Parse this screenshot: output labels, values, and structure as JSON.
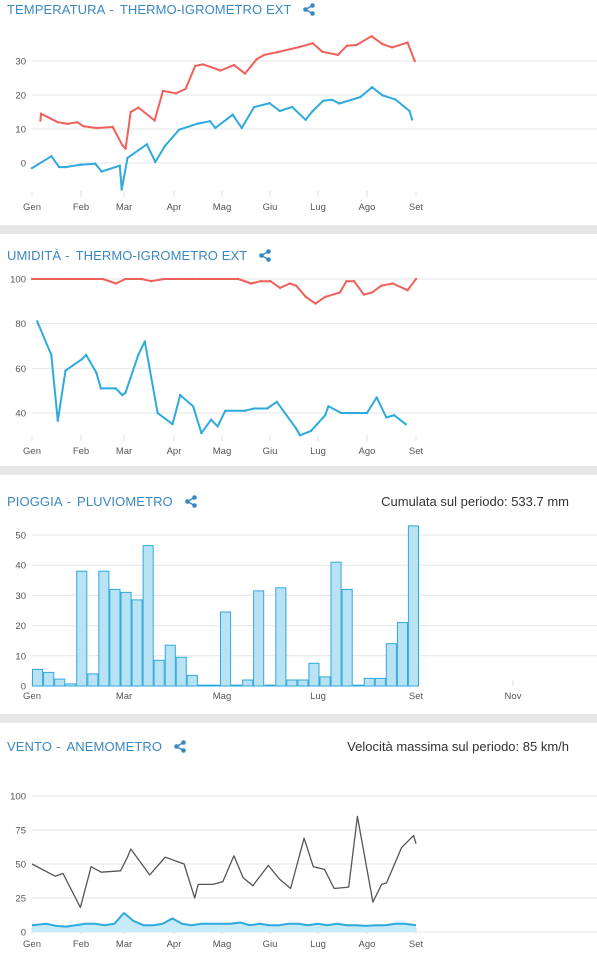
{
  "sections": [
    {
      "title_main": "TEMPERATURA",
      "title_sensor": "THERMO-IGROMETRO EXT"
    },
    {
      "title_main": "UMIDITÀ",
      "title_sensor": "THERMO-IGROMETRO EXT"
    },
    {
      "title_main": "PIOGGIA",
      "title_sensor": "PLUVIOMETRO",
      "stat": "Cumulata sul periodo: 533.7 mm"
    },
    {
      "title_main": "VENTO",
      "title_sensor": "ANEMOMETRO",
      "stat": "Velocità massima sul periodo: 85 km/h"
    }
  ],
  "colors": {
    "max": "#f0605a",
    "min": "#2eaadc",
    "rain_fill": "#b9e3f4",
    "rain_stroke": "#2eaadc",
    "wind_max": "#555555",
    "wind_avg": "#2eaadc",
    "wind_fill": "#c7ebf8",
    "grid": "#e6e6e6",
    "title": "#3a88c2"
  },
  "icons": {
    "share": "share-icon"
  },
  "chart_data": [
    {
      "type": "line",
      "xlabels": [
        "Gen",
        "Feb",
        "Mar",
        "Apr",
        "Mag",
        "Giu",
        "Lug",
        "Ago",
        "Set"
      ],
      "yticks": [
        0,
        10,
        20,
        30
      ],
      "ylim": [
        -9,
        40
      ],
      "series": [
        {
          "values": [
            [
              1.3,
              12.5
            ],
            [
              1.4,
              14.5
            ],
            [
              4,
              12
            ],
            [
              5.5,
              11.5
            ],
            [
              7,
              12
            ],
            [
              8,
              10.8
            ],
            [
              10,
              10.3
            ],
            [
              12.5,
              10.6
            ],
            [
              14,
              5.2
            ],
            [
              14.5,
              4.2
            ],
            [
              15.3,
              15
            ],
            [
              16.5,
              16.3
            ],
            [
              19,
              12.5
            ],
            [
              20.3,
              21.2
            ],
            [
              22.3,
              20.5
            ],
            [
              23.8,
              21.8
            ],
            [
              25.3,
              28.6
            ],
            [
              26.5,
              29
            ],
            [
              27.6,
              28.3
            ],
            [
              29.2,
              27.2
            ],
            [
              31.3,
              28.8
            ],
            [
              33,
              26.3
            ],
            [
              34.8,
              30.5
            ],
            [
              36,
              31.8
            ],
            [
              38,
              32.6
            ],
            [
              41.2,
              34
            ],
            [
              43.5,
              35.2
            ],
            [
              45,
              32.7
            ],
            [
              47.4,
              31.8
            ],
            [
              48.8,
              34.5
            ],
            [
              50.3,
              34.7
            ],
            [
              52.6,
              37.3
            ],
            [
              54.3,
              35
            ],
            [
              55.8,
              34
            ],
            [
              58.2,
              35.4
            ],
            [
              59.3,
              30
            ]
          ]
        },
        {
          "values": [
            [
              0,
              -1.5
            ],
            [
              3,
              2
            ],
            [
              4.2,
              -1.2
            ],
            [
              5.2,
              -1.2
            ],
            [
              7.5,
              -0.5
            ],
            [
              9.8,
              -0.2
            ],
            [
              10.8,
              -2.5
            ],
            [
              13.6,
              -0.8
            ],
            [
              13.9,
              -7.8
            ],
            [
              14.8,
              1.5
            ],
            [
              17.8,
              5.5
            ],
            [
              19.1,
              0.3
            ],
            [
              20.6,
              5
            ],
            [
              22.8,
              9.8
            ],
            [
              25.7,
              11.6
            ],
            [
              27.6,
              12.3
            ],
            [
              28.4,
              10.3
            ],
            [
              31.1,
              14.2
            ],
            [
              32.5,
              10.3
            ],
            [
              34.4,
              16.4
            ],
            [
              36.8,
              17.6
            ],
            [
              38.4,
              15.3
            ],
            [
              40.3,
              16.5
            ],
            [
              42.4,
              12.7
            ],
            [
              43.5,
              15.3
            ],
            [
              45.1,
              18.3
            ],
            [
              46.5,
              18.6
            ],
            [
              47.6,
              17.5
            ],
            [
              49.5,
              18.6
            ],
            [
              50.9,
              19.4
            ],
            [
              52.7,
              22.3
            ],
            [
              54.3,
              19.9
            ],
            [
              56.3,
              18.7
            ],
            [
              58.5,
              15.3
            ],
            [
              58.9,
              12.8
            ]
          ]
        }
      ]
    },
    {
      "type": "line",
      "xlabels": [
        "Gen",
        "Feb",
        "Mar",
        "Apr",
        "Mag",
        "Giu",
        "Lug",
        "Ago",
        "Set"
      ],
      "yticks": [
        40,
        60,
        80,
        100
      ],
      "ylim": [
        26,
        102
      ],
      "series": [
        {
          "values": [
            [
              0,
              100
            ],
            [
              3,
              100
            ],
            [
              6,
              100
            ],
            [
              9,
              100
            ],
            [
              11,
              100
            ],
            [
              13,
              98
            ],
            [
              14.5,
              100
            ],
            [
              17,
              100
            ],
            [
              18.5,
              99
            ],
            [
              20.5,
              100
            ],
            [
              23,
              100
            ],
            [
              26,
              100
            ],
            [
              29,
              100
            ],
            [
              32,
              100
            ],
            [
              34,
              98
            ],
            [
              35.5,
              99
            ],
            [
              37,
              99
            ],
            [
              38.5,
              96
            ],
            [
              40,
              98
            ],
            [
              41,
              97
            ],
            [
              42.5,
              92
            ],
            [
              44,
              89
            ],
            [
              45.5,
              92
            ],
            [
              47.8,
              94
            ],
            [
              48.8,
              99
            ],
            [
              50,
              99
            ],
            [
              51.5,
              93
            ],
            [
              52.8,
              94
            ],
            [
              54.2,
              97
            ],
            [
              56,
              98
            ],
            [
              58.3,
              95
            ],
            [
              59.6,
              100
            ]
          ]
        },
        {
          "values": [
            [
              0.8,
              81
            ],
            [
              3,
              66
            ],
            [
              4,
              36.5
            ],
            [
              5.2,
              59
            ],
            [
              7.7,
              64
            ],
            [
              8.4,
              66
            ],
            [
              10,
              58
            ],
            [
              10.7,
              51
            ],
            [
              13,
              51
            ],
            [
              14,
              48
            ],
            [
              14.5,
              49
            ],
            [
              16.5,
              66
            ],
            [
              17.5,
              72
            ],
            [
              19.5,
              40
            ],
            [
              21.8,
              35
            ],
            [
              23,
              48
            ],
            [
              25,
              43
            ],
            [
              26.3,
              31
            ],
            [
              27.8,
              37
            ],
            [
              28.8,
              34
            ],
            [
              30,
              41
            ],
            [
              33,
              41
            ],
            [
              34.5,
              42
            ],
            [
              36.5,
              42
            ],
            [
              38,
              45
            ],
            [
              41,
              33
            ],
            [
              41.6,
              30
            ],
            [
              43.3,
              32
            ],
            [
              45.5,
              39
            ],
            [
              46,
              43
            ],
            [
              48,
              40
            ],
            [
              52,
              40
            ],
            [
              53.5,
              47
            ],
            [
              55,
              38
            ],
            [
              56.2,
              39
            ],
            [
              58,
              35
            ]
          ]
        }
      ]
    },
    {
      "type": "bar",
      "xlabels": [
        "Gen",
        "Mar",
        "Mag",
        "Lug",
        "Set",
        "Nov"
      ],
      "yticks": [
        0,
        10,
        20,
        30,
        40,
        50
      ],
      "ylim": [
        0,
        55
      ],
      "values": [
        5.5,
        4.5,
        2.3,
        0.7,
        38,
        4,
        38,
        32,
        31,
        28.5,
        46.5,
        8.5,
        13.5,
        9.5,
        3.5,
        0.3,
        0.3,
        24.5,
        0.3,
        2,
        31.5,
        0.3,
        32.5,
        2,
        2,
        7.5,
        3,
        41,
        32,
        0.3,
        2.5,
        2.5,
        14,
        21,
        53
      ]
    },
    {
      "type": "line",
      "xlabels": [
        "Gen",
        "Feb",
        "Mar",
        "Apr",
        "Mag",
        "Giu",
        "Lug",
        "Ago",
        "Set"
      ],
      "yticks": [
        0,
        25,
        50,
        75,
        100
      ],
      "ylim": [
        0,
        110
      ],
      "series": [
        {
          "values": [
            [
              0,
              50
            ],
            [
              4.8,
              41
            ],
            [
              6.4,
              43
            ],
            [
              10,
              18
            ],
            [
              12.2,
              48
            ],
            [
              14.3,
              44
            ],
            [
              18.3,
              45
            ],
            [
              19.7,
              55
            ],
            [
              20.4,
              61
            ],
            [
              24.3,
              42
            ],
            [
              27.5,
              55
            ],
            [
              31.4,
              50
            ],
            [
              33.6,
              25
            ],
            [
              34.3,
              35
            ],
            [
              37.3,
              35
            ],
            [
              39.4,
              37
            ],
            [
              41.7,
              56
            ],
            [
              43.6,
              40
            ],
            [
              45.6,
              34
            ],
            [
              48.8,
              49
            ],
            [
              51.1,
              39
            ],
            [
              53.4,
              32
            ],
            [
              56.2,
              69
            ],
            [
              58.1,
              48
            ],
            [
              60.4,
              46
            ],
            [
              62.4,
              32
            ],
            [
              65.4,
              33
            ],
            [
              67.2,
              85
            ],
            [
              70.4,
              22
            ],
            [
              72.2,
              35
            ],
            [
              73.2,
              36
            ],
            [
              76.3,
              62
            ],
            [
              78.8,
              71
            ],
            [
              79.3,
              65
            ]
          ]
        },
        {
          "values": [
            [
              0,
              5
            ],
            [
              3,
              6
            ],
            [
              5,
              4.5
            ],
            [
              7,
              4
            ],
            [
              9,
              5
            ],
            [
              11,
              6
            ],
            [
              13,
              6
            ],
            [
              15,
              5
            ],
            [
              17,
              6
            ],
            [
              19,
              14
            ],
            [
              21,
              8
            ],
            [
              23,
              5
            ],
            [
              25,
              5
            ],
            [
              27,
              6
            ],
            [
              29,
              10
            ],
            [
              31,
              6
            ],
            [
              33,
              5
            ],
            [
              35,
              6
            ],
            [
              37,
              6
            ],
            [
              39,
              6
            ],
            [
              41,
              6
            ],
            [
              43,
              7
            ],
            [
              45,
              5
            ],
            [
              47,
              6
            ],
            [
              49,
              5
            ],
            [
              51,
              5
            ],
            [
              53,
              6
            ],
            [
              55,
              6
            ],
            [
              57,
              5
            ],
            [
              59,
              6
            ],
            [
              61,
              5
            ],
            [
              63,
              6
            ],
            [
              65,
              5
            ],
            [
              67,
              5
            ],
            [
              69,
              4.5
            ],
            [
              71,
              5
            ],
            [
              73,
              5
            ],
            [
              75,
              6
            ],
            [
              77,
              6
            ],
            [
              79.3,
              5
            ]
          ]
        }
      ]
    }
  ]
}
